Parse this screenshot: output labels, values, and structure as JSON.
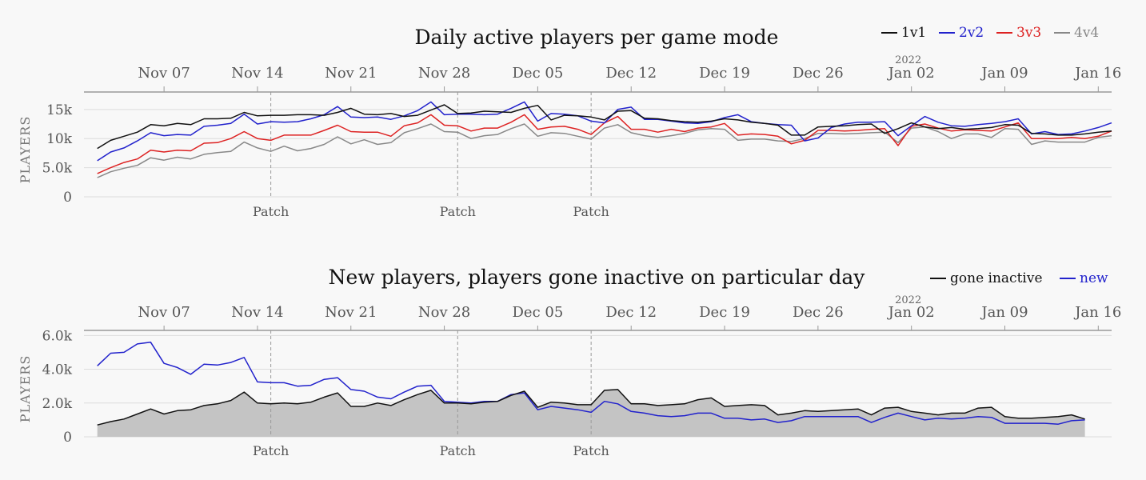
{
  "chart_data": [
    {
      "type": "line",
      "title": "Daily active players per game mode",
      "xlabel": "",
      "ylabel": "PLAYERS",
      "x_start": "2021-11-02",
      "x_step_days": 1,
      "xlim": [
        "2021-11-01",
        "2022-01-17"
      ],
      "x_ticks": [
        "Nov 07",
        "Nov 14",
        "Nov 21",
        "Nov 28",
        "Dec 05",
        "Dec 12",
        "Dec 19",
        "Dec 26",
        "Jan 02",
        "Jan 09",
        "Jan 16"
      ],
      "x_tick_dates": [
        "2021-11-07",
        "2021-11-14",
        "2021-11-21",
        "2021-11-28",
        "2021-12-05",
        "2021-12-12",
        "2021-12-19",
        "2021-12-26",
        "2022-01-02",
        "2022-01-09",
        "2022-01-16"
      ],
      "year_label": "2022",
      "year_label_date": "2022-01-02",
      "ylim": [
        0,
        18000
      ],
      "y_ticks": [
        0,
        5000,
        10000,
        15000
      ],
      "y_tick_labels": [
        "0",
        "5.0k",
        "10k",
        "15k"
      ],
      "grid": true,
      "legend": "top-right",
      "events": [
        {
          "date": "2021-11-15",
          "label": "Patch"
        },
        {
          "date": "2021-11-29",
          "label": "Patch"
        },
        {
          "date": "2021-12-09",
          "label": "Patch"
        }
      ],
      "series": [
        {
          "name": "1v1",
          "color": "#111111",
          "values": [
            8300,
            9700,
            10400,
            11100,
            12400,
            12200,
            12600,
            12400,
            13400,
            13400,
            13500,
            14500,
            13900,
            14000,
            14000,
            14100,
            14100,
            14000,
            14500,
            15200,
            14200,
            14100,
            14300,
            13800,
            14000,
            14900,
            15800,
            14300,
            14400,
            14700,
            14600,
            14500,
            15200,
            15700,
            13200,
            14000,
            13900,
            13700,
            13200,
            14700,
            14800,
            13500,
            13400,
            13100,
            12900,
            12800,
            13000,
            13400,
            13200,
            12800,
            12600,
            12300,
            10600,
            10600,
            12000,
            12100,
            12200,
            12400,
            12500,
            10900,
            11700,
            12700,
            12000,
            11700,
            11900,
            11600,
            11700,
            11900,
            12400,
            12300,
            10900,
            10800,
            10600,
            10600,
            10800,
            11100,
            11300
          ]
        },
        {
          "name": "2v2",
          "color": "#2222cc",
          "values": [
            6200,
            7700,
            8400,
            9600,
            11000,
            10500,
            10700,
            10600,
            12100,
            12300,
            12600,
            14200,
            12500,
            12900,
            12800,
            12900,
            13400,
            14100,
            15500,
            13700,
            13600,
            13700,
            13300,
            13900,
            14800,
            16300,
            14100,
            14200,
            14200,
            14100,
            14200,
            15200,
            16300,
            13000,
            14300,
            14200,
            13900,
            13000,
            12700,
            15000,
            15400,
            13300,
            13300,
            13000,
            12700,
            12600,
            12900,
            13600,
            14100,
            12900,
            12600,
            12400,
            12300,
            9600,
            10100,
            11900,
            12500,
            12800,
            12800,
            12900,
            10500,
            12200,
            13800,
            12800,
            12200,
            12100,
            12400,
            12600,
            12900,
            13400,
            10800,
            11200,
            10700,
            10800,
            11300,
            11900,
            12700
          ]
        },
        {
          "name": "3v3",
          "color": "#dd2222",
          "values": [
            4000,
            5000,
            5900,
            6500,
            8000,
            7700,
            8000,
            7900,
            9200,
            9300,
            10000,
            11200,
            10000,
            9700,
            10600,
            10600,
            10600,
            11400,
            12300,
            11200,
            11100,
            11100,
            10400,
            12200,
            12700,
            14100,
            12300,
            12200,
            11300,
            11800,
            11800,
            12800,
            14100,
            11600,
            12000,
            12100,
            11600,
            10700,
            12700,
            13800,
            11600,
            11600,
            11100,
            11600,
            11200,
            11800,
            12000,
            12600,
            10600,
            10800,
            10700,
            10400,
            9100,
            9700,
            11400,
            11400,
            11300,
            11400,
            11600,
            11700,
            8800,
            12100,
            12500,
            11800,
            11300,
            11500,
            11400,
            11300,
            12000,
            12700,
            10000,
            10000,
            10000,
            10200,
            10000,
            10400,
            11300
          ]
        },
        {
          "name": "4v4",
          "color": "#888888",
          "values": [
            3300,
            4300,
            4900,
            5400,
            6700,
            6300,
            6800,
            6500,
            7300,
            7600,
            7800,
            9400,
            8400,
            7800,
            8700,
            7900,
            8300,
            9000,
            10300,
            9100,
            9800,
            9000,
            9300,
            11000,
            11700,
            12500,
            11200,
            11100,
            10000,
            10500,
            10700,
            11700,
            12500,
            10400,
            11000,
            10900,
            10400,
            9900,
            11800,
            12400,
            11000,
            10500,
            10200,
            10500,
            10900,
            11500,
            11700,
            11600,
            9700,
            9900,
            9900,
            9600,
            9500,
            10000,
            10900,
            10900,
            10800,
            10900,
            11000,
            11100,
            9300,
            11800,
            12000,
            11200,
            10000,
            10800,
            10800,
            10200,
            11700,
            11600,
            9000,
            9600,
            9400,
            9400,
            9400,
            10200,
            10500
          ]
        }
      ]
    },
    {
      "type": "area",
      "title": "New players, players gone inactive on particular day",
      "xlabel": "",
      "ylabel": "PLAYERS",
      "x_start": "2021-11-02",
      "x_step_days": 1,
      "xlim": [
        "2021-11-01",
        "2022-01-17"
      ],
      "x_ticks": [
        "Nov 07",
        "Nov 14",
        "Nov 21",
        "Nov 28",
        "Dec 05",
        "Dec 12",
        "Dec 19",
        "Dec 26",
        "Jan 02",
        "Jan 09",
        "Jan 16"
      ],
      "x_tick_dates": [
        "2021-11-07",
        "2021-11-14",
        "2021-11-21",
        "2021-11-28",
        "2021-12-05",
        "2021-12-12",
        "2021-12-19",
        "2021-12-26",
        "2022-01-02",
        "2022-01-09",
        "2022-01-16"
      ],
      "year_label": "2022",
      "year_label_date": "2022-01-02",
      "ylim": [
        0,
        6300
      ],
      "y_ticks": [
        0,
        2000,
        4000,
        6000
      ],
      "y_tick_labels": [
        "0",
        "2.0k",
        "4.0k",
        "6.0k"
      ],
      "grid": true,
      "legend": "top-right",
      "events": [
        {
          "date": "2021-11-15",
          "label": "Patch"
        },
        {
          "date": "2021-11-29",
          "label": "Patch"
        },
        {
          "date": "2021-12-09",
          "label": "Patch"
        }
      ],
      "series": [
        {
          "name": "gone inactive",
          "color": "#111111",
          "fill": "#c4c4c4",
          "values": [
            700,
            900,
            1050,
            1350,
            1650,
            1350,
            1550,
            1600,
            1850,
            1950,
            2150,
            2650,
            2000,
            1950,
            2000,
            1950,
            2050,
            2350,
            2600,
            1800,
            1800,
            2000,
            1850,
            2200,
            2500,
            2750,
            2000,
            2000,
            1950,
            2050,
            2100,
            2450,
            2700,
            1750,
            2050,
            2000,
            1900,
            1900,
            2750,
            2800,
            1950,
            1950,
            1850,
            1900,
            1950,
            2200,
            2300,
            1800,
            1850,
            1900,
            1850,
            1300,
            1400,
            1550,
            1500,
            1550,
            1600,
            1650,
            1300,
            1700,
            1750,
            1500,
            1400,
            1300,
            1400,
            1400,
            1700,
            1750,
            1200,
            1100,
            1100,
            1150,
            1200,
            1300,
            1050
          ]
        },
        {
          "name": "new",
          "color": "#2222cc",
          "values": [
            4200,
            4950,
            5000,
            5500,
            5600,
            4350,
            4100,
            3700,
            4300,
            4250,
            4400,
            4700,
            3250,
            3200,
            3200,
            3000,
            3050,
            3400,
            3500,
            2800,
            2700,
            2350,
            2250,
            2650,
            3000,
            3050,
            2100,
            2050,
            2000,
            2100,
            2100,
            2500,
            2600,
            1600,
            1800,
            1700,
            1600,
            1450,
            2100,
            1950,
            1500,
            1400,
            1250,
            1200,
            1250,
            1400,
            1400,
            1100,
            1100,
            1000,
            1050,
            850,
            950,
            1200,
            1200,
            1200,
            1200,
            1200,
            850,
            1150,
            1400,
            1200,
            1000,
            1100,
            1050,
            1100,
            1200,
            1150,
            800,
            800,
            800,
            800,
            750,
            950,
            1000
          ]
        }
      ]
    }
  ]
}
